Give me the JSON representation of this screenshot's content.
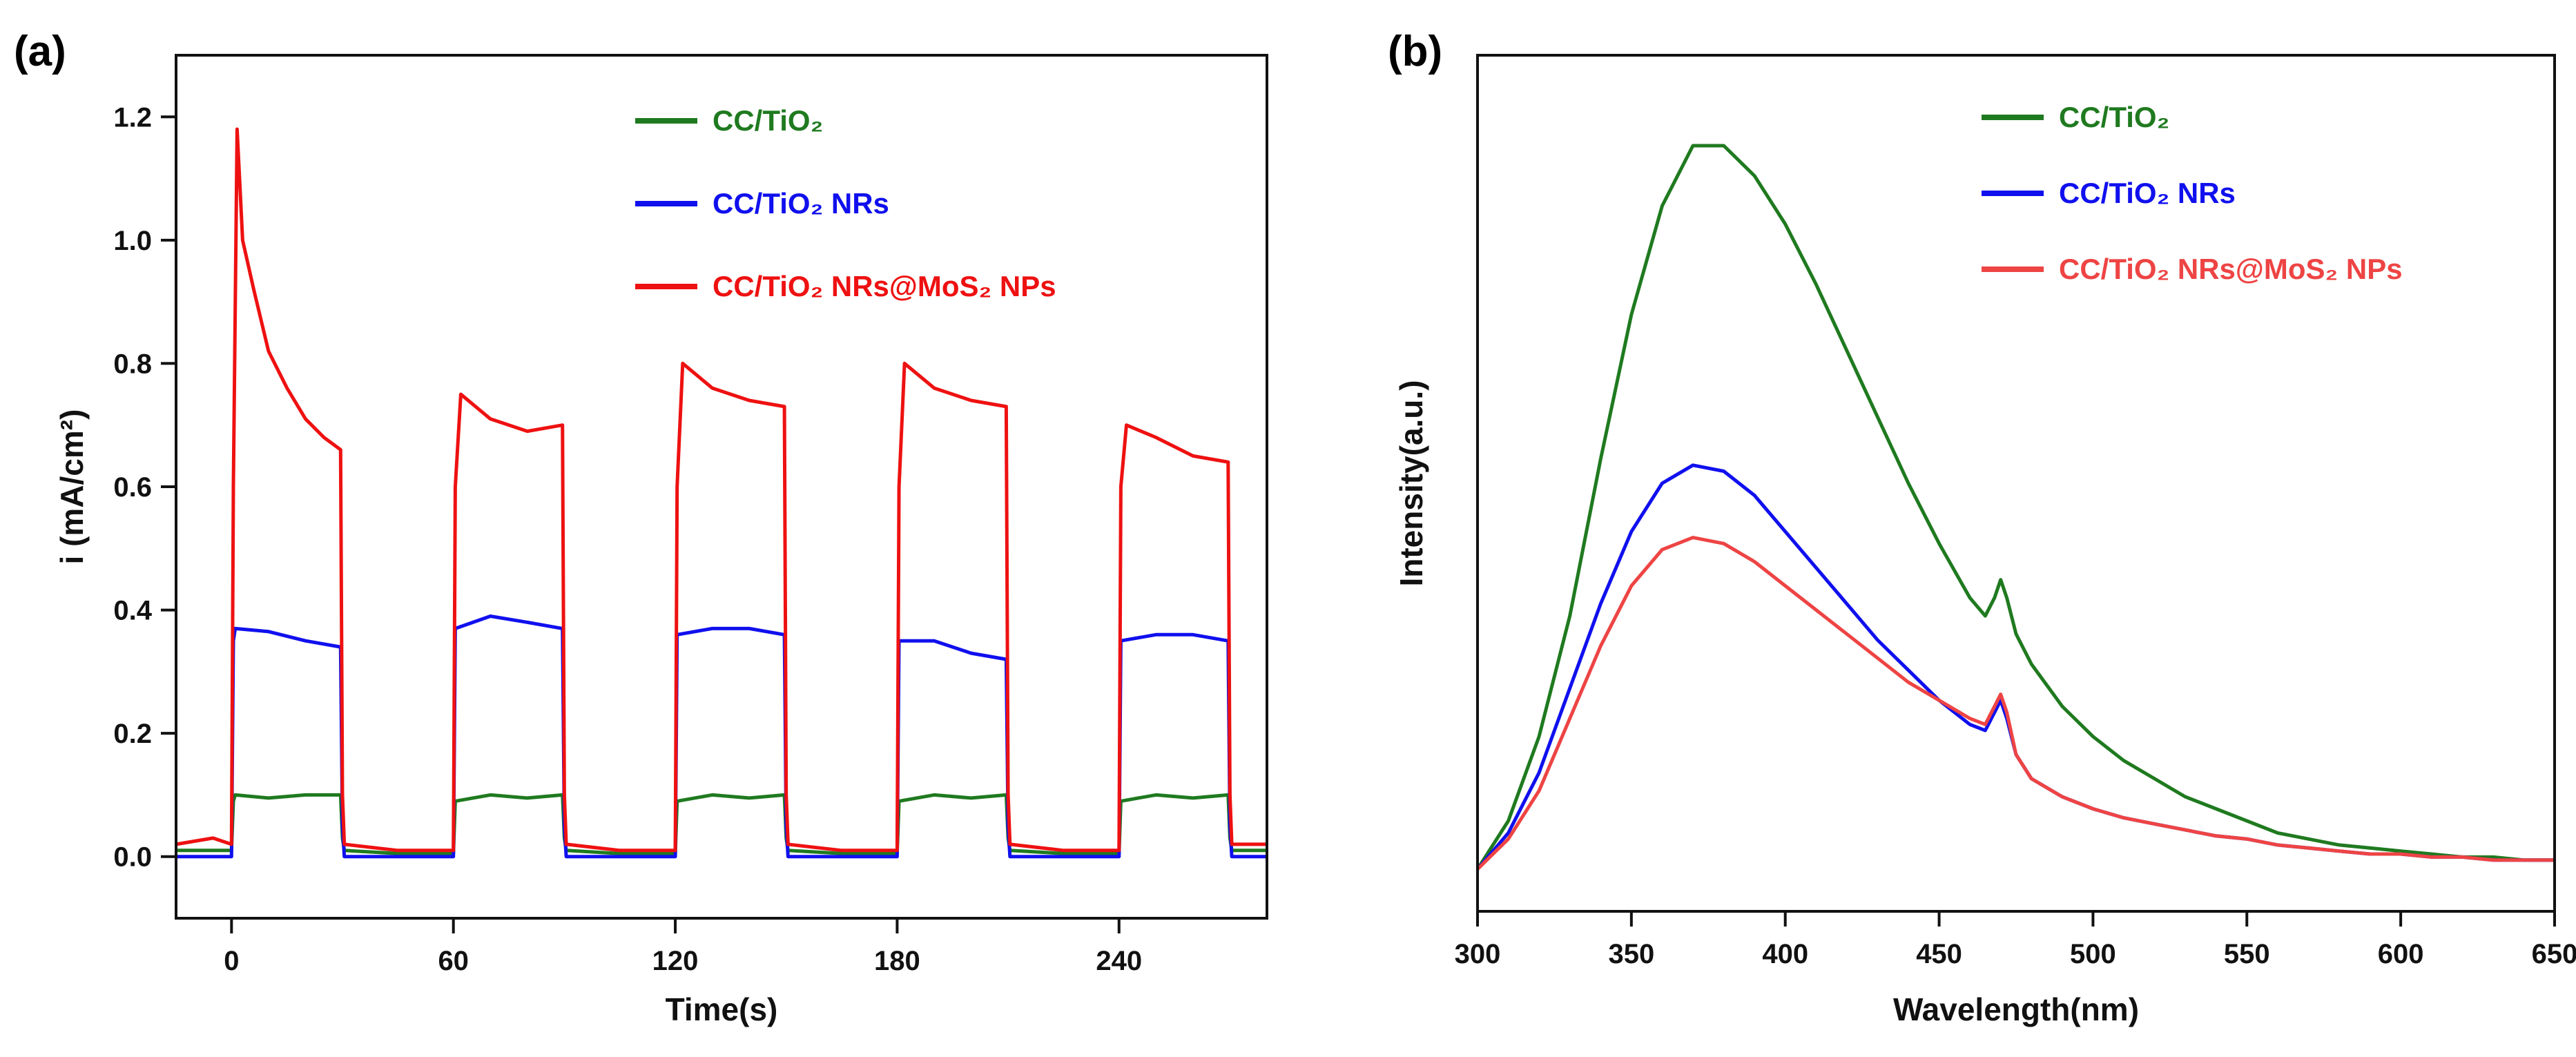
{
  "chart_data": [
    {
      "panel_label": "(a)",
      "type": "line",
      "title": "",
      "xlabel": "Time(s)",
      "ylabel": "i (mA/cm²)",
      "xlim": [
        -15,
        280
      ],
      "ylim": [
        -0.1,
        1.3
      ],
      "xticks": [
        0,
        60,
        120,
        180,
        240
      ],
      "xtick_labels": [
        "0",
        "60",
        "120",
        "180",
        "240"
      ],
      "yticks": [
        0.0,
        0.2,
        0.4,
        0.6,
        0.8,
        1.0,
        1.2
      ],
      "ytick_labels": [
        "0.0",
        "0.2",
        "0.4",
        "0.6",
        "0.8",
        "1.0",
        "1.2"
      ],
      "grid": false,
      "legend_position": "top-right",
      "series": [
        {
          "name": "CC/TiO₂",
          "color": "#1f7a1f",
          "x": [
            -15,
            0,
            0.5,
            1,
            10,
            20,
            29.5,
            30,
            30.5,
            45,
            59.5,
            60,
            60.5,
            70,
            80,
            89.5,
            90,
            90.5,
            105,
            119.5,
            120,
            120.5,
            130,
            140,
            149.5,
            150,
            150.5,
            165,
            179.5,
            180,
            180.5,
            190,
            200,
            209.5,
            210,
            210.5,
            225,
            239.5,
            240,
            240.5,
            250,
            260,
            269.5,
            270,
            270.5,
            280
          ],
          "y": [
            0.01,
            0.01,
            0.09,
            0.1,
            0.095,
            0.1,
            0.1,
            0.03,
            0.01,
            0.005,
            0.005,
            0.005,
            0.09,
            0.1,
            0.095,
            0.1,
            0.03,
            0.01,
            0.005,
            0.005,
            0.005,
            0.09,
            0.1,
            0.095,
            0.1,
            0.03,
            0.01,
            0.005,
            0.005,
            0.005,
            0.09,
            0.1,
            0.095,
            0.1,
            0.03,
            0.01,
            0.005,
            0.005,
            0.005,
            0.09,
            0.1,
            0.095,
            0.1,
            0.03,
            0.01,
            0.01
          ]
        },
        {
          "name": "CC/TiO₂ NRs",
          "color": "#1010ee",
          "x": [
            -15,
            0,
            0.5,
            1,
            10,
            20,
            29.5,
            30,
            30.5,
            45,
            59.5,
            60,
            60.5,
            70,
            80,
            89.5,
            90,
            90.5,
            105,
            119.5,
            120,
            120.5,
            130,
            140,
            149.5,
            150,
            150.5,
            165,
            179.5,
            180,
            180.5,
            190,
            200,
            209.5,
            210,
            210.5,
            225,
            239.5,
            240,
            240.5,
            250,
            260,
            269.5,
            270,
            270.5,
            280
          ],
          "y": [
            0.0,
            0.0,
            0.35,
            0.37,
            0.365,
            0.35,
            0.34,
            0.05,
            0.0,
            0.0,
            0.0,
            0.0,
            0.37,
            0.39,
            0.38,
            0.37,
            0.05,
            0.0,
            0.0,
            0.0,
            0.0,
            0.36,
            0.37,
            0.37,
            0.36,
            0.05,
            0.0,
            0.0,
            0.0,
            0.0,
            0.35,
            0.35,
            0.33,
            0.32,
            0.05,
            0.0,
            0.0,
            0.0,
            0.0,
            0.35,
            0.36,
            0.36,
            0.35,
            0.05,
            0.0,
            0.0
          ]
        },
        {
          "name": "CC/TiO₂ NRs@MoS₂ NPs",
          "color": "#ee1111",
          "x": [
            -15,
            -5,
            0,
            0.5,
            1.5,
            3,
            6,
            10,
            15,
            20,
            25,
            29.5,
            30,
            30.5,
            45,
            59.5,
            60,
            60.5,
            62,
            70,
            80,
            89.5,
            90,
            90.5,
            105,
            119.5,
            120,
            120.5,
            122,
            130,
            140,
            149.5,
            150,
            150.5,
            165,
            179.5,
            180,
            180.5,
            182,
            190,
            200,
            209.5,
            210,
            210.5,
            225,
            239.5,
            240,
            240.5,
            242,
            250,
            260,
            269.5,
            270,
            270.5,
            280
          ],
          "y": [
            0.02,
            0.03,
            0.02,
            0.6,
            1.18,
            1.0,
            0.92,
            0.82,
            0.76,
            0.71,
            0.68,
            0.66,
            0.1,
            0.02,
            0.01,
            0.01,
            0.01,
            0.6,
            0.75,
            0.71,
            0.69,
            0.7,
            0.1,
            0.02,
            0.01,
            0.01,
            0.01,
            0.6,
            0.8,
            0.76,
            0.74,
            0.73,
            0.1,
            0.02,
            0.01,
            0.01,
            0.01,
            0.6,
            0.8,
            0.76,
            0.74,
            0.73,
            0.1,
            0.02,
            0.01,
            0.01,
            0.01,
            0.6,
            0.7,
            0.68,
            0.65,
            0.64,
            0.1,
            0.02,
            0.02
          ]
        }
      ]
    },
    {
      "panel_label": "(b)",
      "type": "line",
      "title": "",
      "xlabel": "Wavelength(nm)",
      "ylabel": "Intensity(a.u.)",
      "xlim": [
        300,
        650
      ],
      "ylim": [
        -0.07,
        1.35
      ],
      "xticks": [
        300,
        350,
        400,
        450,
        500,
        550,
        600,
        650
      ],
      "xtick_labels": [
        "300",
        "350",
        "400",
        "450",
        "500",
        "550",
        "600",
        "650"
      ],
      "yticks": [],
      "ytick_labels": [],
      "grid": false,
      "legend_position": "top-right",
      "series": [
        {
          "name": "CC/TiO₂",
          "color": "#1f7a1f",
          "x": [
            300,
            310,
            320,
            330,
            340,
            350,
            360,
            370,
            380,
            390,
            400,
            410,
            420,
            430,
            440,
            450,
            460,
            465,
            468,
            470,
            472,
            475,
            480,
            490,
            500,
            510,
            520,
            530,
            540,
            550,
            560,
            570,
            580,
            590,
            600,
            610,
            620,
            630,
            640,
            650
          ],
          "y": [
            0.0,
            0.08,
            0.22,
            0.42,
            0.68,
            0.92,
            1.1,
            1.2,
            1.2,
            1.15,
            1.07,
            0.97,
            0.86,
            0.75,
            0.64,
            0.54,
            0.45,
            0.42,
            0.45,
            0.48,
            0.45,
            0.39,
            0.34,
            0.27,
            0.22,
            0.18,
            0.15,
            0.12,
            0.1,
            0.08,
            0.06,
            0.05,
            0.04,
            0.035,
            0.03,
            0.025,
            0.02,
            0.02,
            0.015,
            0.015
          ]
        },
        {
          "name": "CC/TiO₂ NRs",
          "color": "#1010ee",
          "x": [
            300,
            310,
            320,
            330,
            340,
            350,
            360,
            370,
            380,
            390,
            400,
            410,
            420,
            430,
            440,
            450,
            460,
            465,
            468,
            470,
            472,
            475,
            480,
            490,
            500,
            510,
            520,
            530,
            540,
            550,
            560,
            570,
            580,
            590,
            600,
            610,
            620,
            630,
            640,
            650
          ],
          "y": [
            0.0,
            0.06,
            0.16,
            0.3,
            0.44,
            0.56,
            0.64,
            0.67,
            0.66,
            0.62,
            0.56,
            0.5,
            0.44,
            0.38,
            0.33,
            0.28,
            0.24,
            0.23,
            0.26,
            0.28,
            0.25,
            0.19,
            0.15,
            0.12,
            0.1,
            0.085,
            0.075,
            0.065,
            0.055,
            0.05,
            0.04,
            0.035,
            0.03,
            0.025,
            0.025,
            0.02,
            0.02,
            0.015,
            0.015,
            0.015
          ]
        },
        {
          "name": "CC/TiO₂ NRs@MoS₂ NPs",
          "color": "#ee4444",
          "x": [
            300,
            310,
            320,
            330,
            340,
            350,
            360,
            370,
            380,
            390,
            400,
            410,
            420,
            430,
            440,
            450,
            460,
            465,
            468,
            470,
            472,
            475,
            480,
            490,
            500,
            510,
            520,
            530,
            540,
            550,
            560,
            570,
            580,
            590,
            600,
            610,
            620,
            630,
            640,
            650
          ],
          "y": [
            0.0,
            0.05,
            0.13,
            0.25,
            0.37,
            0.47,
            0.53,
            0.55,
            0.54,
            0.51,
            0.47,
            0.43,
            0.39,
            0.35,
            0.31,
            0.28,
            0.25,
            0.24,
            0.27,
            0.29,
            0.26,
            0.19,
            0.15,
            0.12,
            0.1,
            0.085,
            0.075,
            0.065,
            0.055,
            0.05,
            0.04,
            0.035,
            0.03,
            0.025,
            0.025,
            0.02,
            0.02,
            0.015,
            0.015,
            0.015
          ]
        }
      ]
    }
  ]
}
